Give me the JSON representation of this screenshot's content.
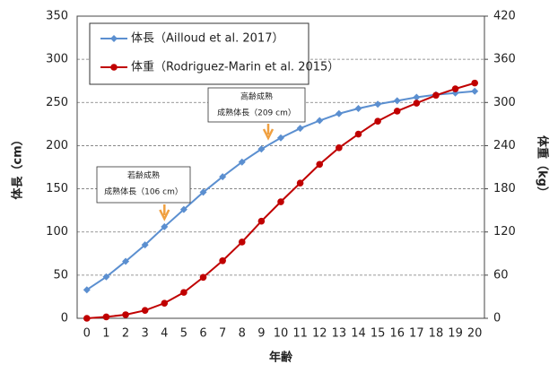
{
  "chart_data": {
    "type": "line",
    "x_label": "年齢",
    "y_label": "体長（cm）",
    "y2_label": "体重（kg）",
    "categories": [
      "0",
      "1",
      "2",
      "3",
      "4",
      "5",
      "6",
      "7",
      "8",
      "9",
      "10",
      "11",
      "12",
      "13",
      "14",
      "15",
      "16",
      "17",
      "18",
      "19",
      "20"
    ],
    "series": [
      {
        "name": "体長（Ailloud et al. 2017）",
        "color": "#5b8fd0",
        "marker": "diamond",
        "values": [
          33,
          48,
          66,
          85,
          106,
          126,
          146,
          164,
          181,
          196,
          209,
          220,
          229,
          237,
          243,
          248,
          252,
          256,
          259,
          261,
          263
        ]
      },
      {
        "name": "体重（Rodriguez-Marin et al. 2015）",
        "color": "#c00000",
        "marker": "circle",
        "axis": "y2",
        "values": [
          0,
          2,
          5,
          11,
          21,
          36,
          57,
          80,
          106,
          135,
          162,
          188,
          214,
          237,
          256,
          274,
          288,
          299,
          310,
          319,
          327
        ]
      }
    ],
    "ylim": [
      0,
      350
    ],
    "yticks": [
      0,
      50,
      100,
      150,
      200,
      250,
      300,
      350
    ],
    "y2lim": [
      0,
      420
    ],
    "y2ticks": [
      0,
      60,
      120,
      180,
      240,
      300,
      360,
      420
    ],
    "grid": true,
    "legend_loc": "upper left",
    "annotations": [
      [
        "若齢成熟",
        "成熟体長（106 cm）"
      ],
      [
        "高齢成熟",
        "成熟体長（209 cm）"
      ]
    ]
  }
}
